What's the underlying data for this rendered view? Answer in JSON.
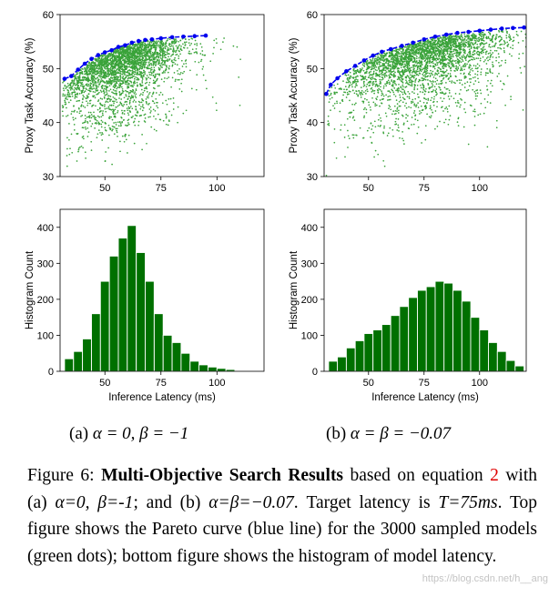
{
  "chart_data": [
    {
      "id": "a_top",
      "type": "scatter",
      "ylabel": "Proxy Task Accuracy (%)",
      "xlim": [
        30,
        121
      ],
      "ylim": [
        30,
        60
      ],
      "xticks": [
        50,
        75,
        100
      ],
      "yticks": [
        30,
        40,
        50,
        60
      ],
      "pareto_series_name": "Pareto curve",
      "pareto_color": "#0000ee",
      "pareto": [
        [
          32,
          48.1
        ],
        [
          35,
          48.6
        ],
        [
          38,
          49.8
        ],
        [
          41,
          50.9
        ],
        [
          44,
          51.8
        ],
        [
          47,
          52.5
        ],
        [
          50,
          53.0
        ],
        [
          53,
          53.4
        ],
        [
          56,
          54.0
        ],
        [
          59,
          54.3
        ],
        [
          62,
          54.8
        ],
        [
          65,
          55.1
        ],
        [
          68,
          55.3
        ],
        [
          71,
          55.4
        ],
        [
          75,
          55.6
        ],
        [
          80,
          55.8
        ],
        [
          85,
          55.9
        ],
        [
          90,
          56.0
        ],
        [
          95,
          56.1
        ]
      ],
      "samples_series_name": "sampled models",
      "samples_color": "#3aa33a",
      "samples_count": 3000,
      "scatter_shape": {
        "lat_mean": 58,
        "lat_sd": 13,
        "lat_min": 31,
        "lat_max": 112,
        "seed": 11
      }
    },
    {
      "id": "b_top",
      "type": "scatter",
      "ylabel": "Proxy Task Accuracy (%)",
      "xlim": [
        30,
        121
      ],
      "ylim": [
        30,
        60
      ],
      "xticks": [
        50,
        75,
        100
      ],
      "yticks": [
        30,
        40,
        50,
        60
      ],
      "pareto_series_name": "Pareto curve",
      "pareto_color": "#0000ee",
      "pareto": [
        [
          31,
          45.3
        ],
        [
          33,
          47.0
        ],
        [
          36,
          48.2
        ],
        [
          40,
          49.5
        ],
        [
          44,
          50.5
        ],
        [
          48,
          51.5
        ],
        [
          52,
          52.4
        ],
        [
          56,
          53.1
        ],
        [
          60,
          53.6
        ],
        [
          65,
          54.2
        ],
        [
          70,
          54.8
        ],
        [
          75,
          55.4
        ],
        [
          80,
          55.9
        ],
        [
          85,
          56.3
        ],
        [
          90,
          56.6
        ],
        [
          95,
          56.8
        ],
        [
          100,
          57.0
        ],
        [
          105,
          57.2
        ],
        [
          110,
          57.4
        ],
        [
          115,
          57.5
        ],
        [
          120,
          57.6
        ]
      ],
      "samples_series_name": "sampled models",
      "samples_color": "#3aa33a",
      "samples_count": 3000,
      "scatter_shape": {
        "lat_mean": 75,
        "lat_sd": 18,
        "lat_min": 31,
        "lat_max": 121,
        "seed": 23
      }
    },
    {
      "id": "a_bottom",
      "type": "bar",
      "xlabel": "Inference Latency (ms)",
      "ylabel": "Histogram Count",
      "xlim": [
        30,
        121
      ],
      "ylim": [
        0,
        450
      ],
      "xticks": [
        50,
        75,
        100
      ],
      "yticks": [
        0,
        100,
        200,
        300,
        400
      ],
      "bar_color": "#007000",
      "bin_width": 4,
      "bin_starts": [
        32,
        36,
        40,
        44,
        48,
        52,
        56,
        60,
        64,
        68,
        72,
        76,
        80,
        84,
        88,
        92,
        96,
        100,
        104,
        108
      ],
      "values": [
        35,
        55,
        90,
        160,
        250,
        320,
        370,
        405,
        330,
        250,
        160,
        100,
        80,
        50,
        28,
        18,
        12,
        8,
        5,
        2
      ]
    },
    {
      "id": "b_bottom",
      "type": "bar",
      "xlabel": "Inference Latency (ms)",
      "ylabel": "Histogram Count",
      "xlim": [
        30,
        121
      ],
      "ylim": [
        0,
        450
      ],
      "xticks": [
        50,
        75,
        100
      ],
      "yticks": [
        0,
        100,
        200,
        300,
        400
      ],
      "bar_color": "#007000",
      "bin_width": 4,
      "bin_starts": [
        32,
        36,
        40,
        44,
        48,
        52,
        56,
        60,
        64,
        68,
        72,
        76,
        80,
        84,
        88,
        92,
        96,
        100,
        104,
        108,
        112,
        116
      ],
      "values": [
        28,
        40,
        65,
        85,
        105,
        115,
        130,
        155,
        180,
        205,
        225,
        235,
        250,
        245,
        225,
        195,
        150,
        115,
        80,
        55,
        30,
        15
      ]
    }
  ],
  "subfigures": {
    "a": {
      "tag": "(a)",
      "text": "α = 0, β = −1"
    },
    "b": {
      "tag": "(b)",
      "text": "α = β = −0.07"
    }
  },
  "caption": {
    "figure_label": "Figure 6:",
    "title": "Multi-Objective Search Results",
    "part1": " based on equation ",
    "ref": "2",
    "part2": " with (a) ",
    "a_params": "α=0, β=-1",
    "part3": "; and (b) ",
    "b_params": "α=β=−0.07",
    "part4": ". Target latency is ",
    "target": "T=75ms",
    "part5": ". Top figure shows the Pareto curve (blue line) for the 3000 sampled models (green dots); bottom figure shows the histogram of model latency."
  },
  "watermark": "https://blog.csdn.net/h__ang"
}
